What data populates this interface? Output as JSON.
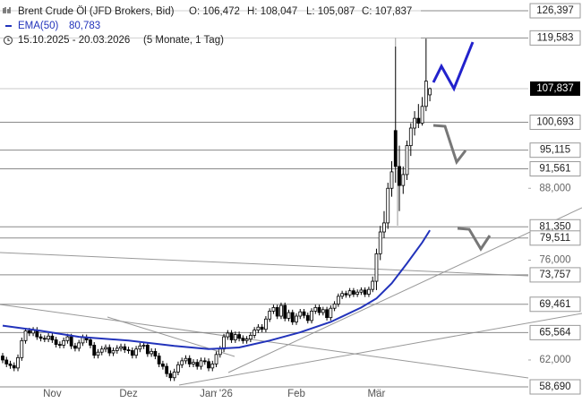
{
  "header": {
    "title": "Brent Crude Öl (JFD Brokers, Bid)",
    "ohlc": [
      "O: 106,472",
      "H: 108,047",
      "L: 105,087",
      "C: 107,837"
    ],
    "ema_name": "EMA(50)",
    "ema_value": "80,783",
    "range": "15.10.2025 - 20.03.2026",
    "period": "(5 Monate, 1 Tag)"
  },
  "chart_data": {
    "type": "candlestick",
    "log_scale": true,
    "up_color": "#ffffff",
    "down_color": "#000000",
    "xlim": [
      -0.7,
      137.8
    ],
    "xticks": [
      {
        "value": 13,
        "label": "Nov"
      },
      {
        "value": 33,
        "label": "Dez"
      },
      {
        "value": 56,
        "label": "Jan '26"
      },
      {
        "value": 77,
        "label": "Feb"
      },
      {
        "value": 98,
        "label": "Mär"
      }
    ],
    "ylim": [
      57.84,
      129.2
    ],
    "yticks": [
      {
        "value": 62,
        "label": "62,000"
      },
      {
        "value": 76,
        "label": "76,000"
      },
      {
        "value": 88,
        "label": "88,000"
      }
    ],
    "open": [
      62.5,
      62.0,
      61.5,
      61.3,
      61.0,
      62.3,
      64.5,
      65.8,
      65.5,
      65.9,
      65.0,
      64.8,
      64.7,
      65.1,
      64.6,
      64.0,
      63.9,
      64.5,
      65.0,
      63.8,
      63.5,
      64.2,
      64.9,
      64.6,
      63.9,
      62.6,
      63.0,
      63.4,
      63.6,
      62.9,
      63.2,
      63.5,
      63.7,
      63.3,
      63.2,
      62.6,
      63.4,
      63.8,
      63.9,
      62.8,
      63.1,
      62.5,
      61.5,
      61.2,
      60.3,
      59.8,
      60.5,
      61.4,
      61.9,
      62.2,
      61.5,
      61.7,
      61.2,
      61.9,
      61.8,
      61.0,
      61.5,
      62.7,
      63.4,
      65.0,
      65.5,
      64.6,
      65.3,
      64.8,
      64.5,
      64.7,
      65.2,
      65.9,
      66.3,
      66.0,
      67.4,
      68.5,
      69.0,
      67.8,
      69.3,
      67.5,
      68.3,
      67.0,
      67.8,
      68.4,
      67.9,
      67.2,
      68.5,
      69.0,
      68.3,
      68.7,
      67.6,
      68.9,
      69.5,
      70.6,
      71.0,
      70.8,
      71.4,
      70.9,
      71.2,
      71.5,
      70.9,
      71.6,
      72.8,
      77.0,
      80.5,
      82.0,
      88.0,
      99.0,
      92.0,
      88.5,
      90.5,
      96.0,
      99.5,
      101.5,
      100.5,
      104.0,
      106.472
    ],
    "high": [
      62.9,
      62.4,
      61.9,
      61.7,
      62.7,
      64.9,
      66.2,
      66.2,
      66.3,
      66.3,
      65.4,
      65.2,
      65.5,
      65.5,
      65.0,
      64.4,
      64.9,
      65.4,
      65.4,
      64.2,
      64.6,
      65.3,
      65.3,
      65.0,
      64.3,
      63.4,
      63.8,
      64.0,
      64.0,
      63.6,
      63.9,
      64.1,
      64.1,
      63.7,
      63.6,
      63.8,
      64.2,
      64.3,
      64.3,
      63.5,
      63.5,
      62.9,
      61.9,
      61.6,
      60.7,
      60.9,
      61.8,
      62.3,
      62.6,
      62.6,
      62.1,
      62.1,
      62.3,
      62.3,
      62.2,
      61.9,
      63.1,
      63.8,
      65.4,
      65.9,
      65.9,
      65.7,
      65.7,
      65.2,
      65.1,
      65.6,
      66.3,
      66.7,
      66.7,
      67.8,
      68.9,
      69.4,
      69.4,
      69.7,
      69.7,
      68.7,
      68.7,
      68.2,
      68.8,
      68.8,
      68.3,
      68.9,
      69.4,
      69.4,
      69.1,
      69.1,
      69.3,
      69.9,
      71.0,
      71.4,
      71.4,
      71.8,
      71.8,
      71.6,
      71.9,
      71.9,
      72.0,
      73.5,
      77.8,
      81.5,
      84.0,
      89.0,
      93.0,
      119.583,
      96.0,
      92.0,
      97.0,
      100.5,
      103.0,
      104.5,
      106.0,
      119.4,
      108.047
    ],
    "low": [
      61.6,
      61.1,
      60.9,
      60.6,
      60.6,
      61.9,
      64.1,
      65.1,
      65.1,
      64.6,
      64.4,
      64.3,
      64.3,
      64.2,
      63.6,
      63.5,
      63.5,
      64.1,
      63.4,
      63.1,
      63.1,
      63.8,
      64.2,
      63.5,
      62.2,
      62.2,
      62.6,
      63.0,
      62.5,
      62.5,
      62.8,
      63.1,
      62.9,
      62.8,
      62.2,
      62.2,
      63.0,
      63.4,
      62.4,
      62.4,
      62.1,
      61.1,
      60.8,
      59.9,
      59.4,
      59.4,
      60.1,
      61.0,
      61.5,
      61.1,
      61.1,
      60.8,
      60.8,
      61.4,
      60.6,
      60.6,
      61.1,
      62.3,
      63.0,
      64.6,
      64.2,
      64.2,
      64.4,
      64.1,
      64.1,
      64.3,
      64.8,
      65.5,
      65.6,
      65.6,
      67.0,
      68.1,
      67.4,
      67.4,
      67.1,
      67.1,
      66.6,
      66.6,
      67.4,
      67.5,
      66.8,
      66.8,
      68.1,
      67.9,
      67.9,
      67.2,
      67.2,
      68.5,
      69.1,
      70.2,
      70.4,
      70.4,
      70.5,
      70.5,
      70.8,
      70.5,
      70.5,
      71.2,
      71.5,
      76.0,
      79.5,
      81.0,
      86.5,
      89.0,
      84.0,
      87.0,
      89.5,
      94.0,
      98.0,
      99.5,
      100.0,
      103.0,
      105.087
    ],
    "close": [
      62.0,
      61.5,
      61.3,
      61.0,
      62.3,
      64.5,
      65.8,
      65.5,
      65.9,
      65.0,
      64.8,
      64.7,
      65.1,
      64.6,
      64.0,
      63.9,
      64.5,
      65.0,
      63.8,
      63.5,
      64.2,
      64.9,
      64.6,
      63.9,
      62.6,
      63.0,
      63.4,
      63.6,
      62.9,
      63.2,
      63.5,
      63.7,
      63.3,
      63.2,
      62.6,
      63.4,
      63.8,
      63.9,
      62.8,
      63.1,
      62.5,
      61.5,
      61.2,
      60.3,
      59.8,
      60.5,
      61.4,
      61.9,
      62.2,
      61.5,
      61.7,
      61.2,
      61.9,
      61.8,
      61.0,
      61.5,
      62.7,
      63.4,
      65.0,
      65.5,
      64.6,
      65.3,
      64.8,
      64.5,
      64.7,
      65.2,
      65.9,
      66.3,
      66.0,
      67.4,
      68.5,
      69.0,
      67.8,
      69.3,
      67.5,
      68.3,
      67.0,
      67.8,
      68.4,
      67.9,
      67.2,
      68.5,
      69.0,
      68.3,
      68.7,
      67.6,
      68.9,
      69.5,
      70.6,
      71.0,
      70.8,
      71.4,
      70.9,
      71.2,
      71.5,
      70.9,
      71.6,
      72.8,
      77.0,
      80.5,
      82.0,
      88.0,
      91.0,
      92.0,
      88.5,
      90.5,
      96.0,
      99.5,
      101.5,
      100.5,
      104.0,
      109.5,
      107.837
    ],
    "ema": {
      "name": "EMA(50)",
      "color": "#2233bb",
      "x": [
        0,
        10,
        20,
        33,
        45,
        54,
        62,
        70,
        78,
        86,
        94,
        98,
        102,
        106,
        110,
        112
      ],
      "values": [
        66.5,
        65.8,
        65.0,
        64.5,
        63.8,
        63.4,
        63.6,
        64.5,
        65.6,
        67.0,
        69.0,
        70.3,
        72.5,
        75.5,
        78.8,
        80.783
      ]
    },
    "levels": [
      {
        "value": 126.397,
        "label": "126,397"
      },
      {
        "value": 119.583,
        "label": "119,583"
      },
      {
        "value": 100.693,
        "label": "100,693"
      },
      {
        "value": 95.115,
        "label": "95,115"
      },
      {
        "value": 91.561,
        "label": "91,561"
      },
      {
        "value": 81.35,
        "label": "81,350"
      },
      {
        "value": 79.511,
        "label": "79,511"
      },
      {
        "value": 73.757,
        "label": "73,757"
      },
      {
        "value": 69.461,
        "label": "69,461"
      },
      {
        "value": 65.564,
        "label": "65,564"
      },
      {
        "value": 58.69,
        "label": "58,690"
      }
    ],
    "last_price": {
      "value": 107.837,
      "label": "107,837"
    }
  }
}
